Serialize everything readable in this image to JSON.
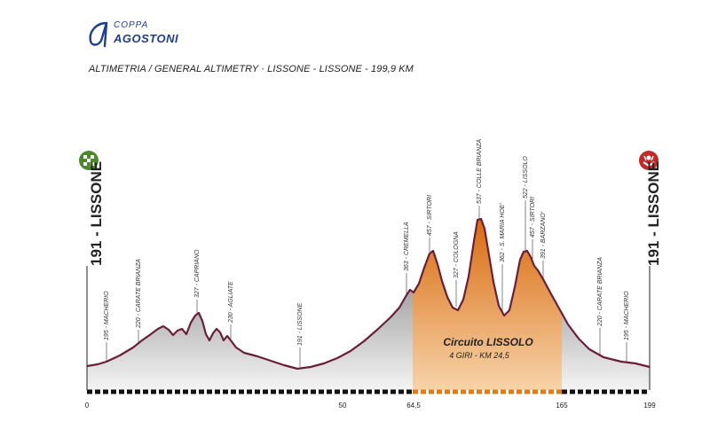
{
  "logo": {
    "top": "COPPA",
    "main": "AGOSTONI"
  },
  "title": "ALTIMETRIA / GENERAL ALTIMETRY  ·  LISSONE - LISSONE - 199,9 KM",
  "start_label": "191 - LISSONE",
  "finish_label": "191 - LISSONE",
  "circuit": {
    "title": "Circuito LISSOLO",
    "subtitle": "4 GIRI - KM 24,5"
  },
  "km_ticks": [
    "0",
    "50",
    "64,5",
    "165",
    "199"
  ],
  "waypoints": [
    {
      "label": "195 - MACHERIO"
    },
    {
      "label": "220 - CARATE BRIANZA"
    },
    {
      "label": "327 - CAPRIANO"
    },
    {
      "label": "230 - AGLIATE"
    },
    {
      "label": "191 - LISSONE"
    },
    {
      "label": "363 - CREMELLA"
    },
    {
      "label": "457 - SIRTORI"
    },
    {
      "label": "327 - COLOGNA"
    },
    {
      "label": "537 - COLLE BRIANZA"
    },
    {
      "label": "362 - S. MARIA HOE'"
    },
    {
      "label": "522 - LISSOLO"
    },
    {
      "label": "457 - SIRTORI"
    },
    {
      "label": "391 - BARZANO'"
    },
    {
      "label": "220 - CARATE BRIANZA"
    },
    {
      "label": "195 - MACHERIO"
    }
  ],
  "colors": {
    "profile_grey": "#8a8a8a",
    "circuit_orange": "#e07b1c",
    "outline": "#6b1e3a",
    "start_icon": "#4b8a2b",
    "finish_icon": "#c62828"
  },
  "icons": {
    "start": "checkered-flag-icon",
    "finish": "finish-icon"
  }
}
